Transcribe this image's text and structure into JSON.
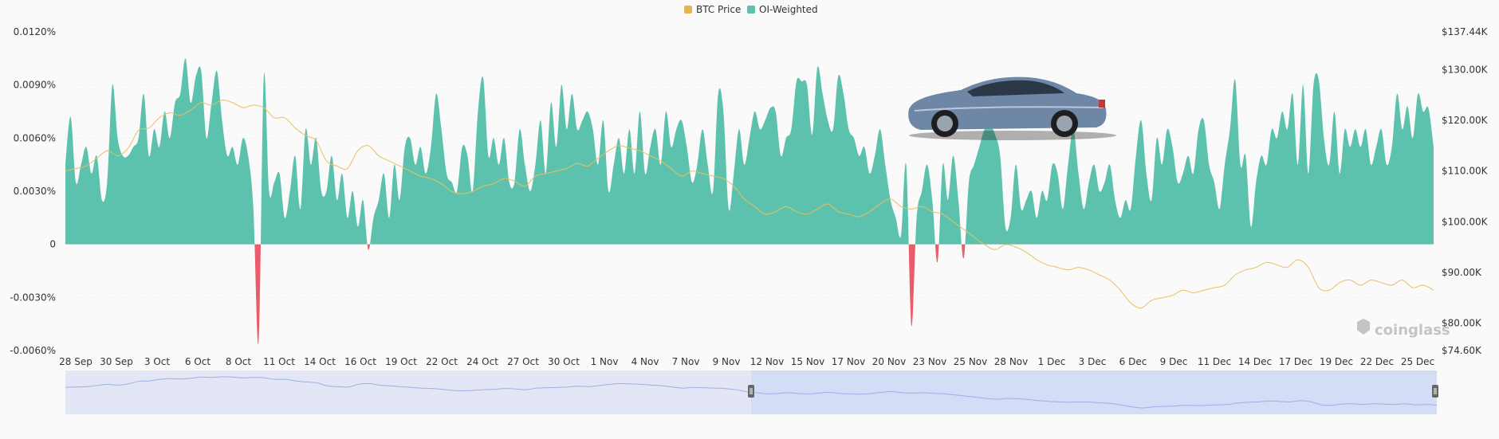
{
  "chart_data": {
    "type": "area",
    "legend_position": "top-center",
    "legend": [
      {
        "name": "BTC Price",
        "color": "#e2b64c"
      },
      {
        "name": "OI-Weighted",
        "color": "#5dc2ad"
      }
    ],
    "colors": {
      "positive": "#5dc2ad",
      "negative": "#ea5c6c",
      "price": "#e8c060",
      "navigator_fill": "#e3e7f5",
      "navigator_selected": "#d3ddf6",
      "navigator_line": "#9eb0e4"
    },
    "x_tick_labels": [
      "28 Sep",
      "30 Sep",
      "3 Oct",
      "6 Oct",
      "8 Oct",
      "11 Oct",
      "14 Oct",
      "16 Oct",
      "19 Oct",
      "22 Oct",
      "24 Oct",
      "27 Oct",
      "30 Oct",
      "1 Nov",
      "4 Nov",
      "7 Nov",
      "9 Nov",
      "12 Nov",
      "15 Nov",
      "17 Nov",
      "20 Nov",
      "23 Nov",
      "25 Nov",
      "28 Nov",
      "1 Dec",
      "3 Dec",
      "6 Dec",
      "9 Dec",
      "11 Dec",
      "14 Dec",
      "17 Dec",
      "19 Dec",
      "22 Dec",
      "25 Dec"
    ],
    "y_left_ticks": [
      "0.0120%",
      "0.0090%",
      "0.0060%",
      "0.0030%",
      "0",
      "-0.0030%",
      "-0.0060%"
    ],
    "y_right_ticks": [
      "$137.44K",
      "$130.00K",
      "$120.00K",
      "$110.00K",
      "$100.00K",
      "$90.00K",
      "$80.00K",
      "$74.60K"
    ],
    "y_left_range": [
      -0.006,
      0.012
    ],
    "y_right_range": [
      74600,
      137440
    ],
    "grid": "horizontal",
    "watermark": "coinglass",
    "funding_rate": [
      [
        0,
        0.0045
      ],
      [
        0.5,
        0.0072
      ],
      [
        1,
        0.0035
      ],
      [
        1.5,
        0.0045
      ],
      [
        2,
        0.0055
      ],
      [
        2.5,
        0.004
      ],
      [
        3,
        0.005
      ],
      [
        3.5,
        0.0025
      ],
      [
        4,
        0.0035
      ],
      [
        4.5,
        0.009
      ],
      [
        5,
        0.006
      ],
      [
        5.5,
        0.005
      ],
      [
        6,
        0.005
      ],
      [
        6.5,
        0.0055
      ],
      [
        7,
        0.006
      ],
      [
        7.5,
        0.0085
      ],
      [
        8,
        0.005
      ],
      [
        8.5,
        0.0065
      ],
      [
        9,
        0.0055
      ],
      [
        9.5,
        0.0075
      ],
      [
        10,
        0.006
      ],
      [
        10.5,
        0.008
      ],
      [
        11,
        0.0085
      ],
      [
        11.5,
        0.0105
      ],
      [
        12,
        0.008
      ],
      [
        12.5,
        0.0095
      ],
      [
        13,
        0.0098
      ],
      [
        13.5,
        0.006
      ],
      [
        14,
        0.008
      ],
      [
        14.5,
        0.0098
      ],
      [
        15,
        0.007
      ],
      [
        15.5,
        0.005
      ],
      [
        16,
        0.0055
      ],
      [
        16.5,
        0.0045
      ],
      [
        17,
        0.006
      ],
      [
        17.5,
        0.005
      ],
      [
        18,
        0.002
      ],
      [
        18.5,
        -0.0055
      ],
      [
        19,
        0.0095
      ],
      [
        19.5,
        0.003
      ],
      [
        20,
        0.0035
      ],
      [
        20.5,
        0.004
      ],
      [
        21,
        0.0015
      ],
      [
        21.5,
        0.003
      ],
      [
        22,
        0.005
      ],
      [
        22.5,
        0.002
      ],
      [
        23,
        0.0065
      ],
      [
        23.5,
        0.0045
      ],
      [
        24,
        0.006
      ],
      [
        24.5,
        0.003
      ],
      [
        25,
        0.003
      ],
      [
        25.5,
        0.005
      ],
      [
        26,
        0.0025
      ],
      [
        26.5,
        0.004
      ],
      [
        27,
        0.0015
      ],
      [
        27.5,
        0.003
      ],
      [
        28,
        0.001
      ],
      [
        28.5,
        0.0025
      ],
      [
        29,
        -0.0003
      ],
      [
        29.5,
        0.0015
      ],
      [
        30,
        0.0025
      ],
      [
        30.5,
        0.004
      ],
      [
        31,
        0.0015
      ],
      [
        31.5,
        0.0045
      ],
      [
        32,
        0.0025
      ],
      [
        32.5,
        0.0055
      ],
      [
        33,
        0.006
      ],
      [
        33.5,
        0.0045
      ],
      [
        34,
        0.0055
      ],
      [
        34.5,
        0.004
      ],
      [
        35,
        0.0055
      ],
      [
        35.5,
        0.0085
      ],
      [
        36,
        0.0065
      ],
      [
        36.5,
        0.004
      ],
      [
        37,
        0.0035
      ],
      [
        37.5,
        0.003
      ],
      [
        38,
        0.0055
      ],
      [
        38.5,
        0.005
      ],
      [
        39,
        0.003
      ],
      [
        39.5,
        0.0075
      ],
      [
        40,
        0.0094
      ],
      [
        40.5,
        0.005
      ],
      [
        41,
        0.006
      ],
      [
        41.5,
        0.0045
      ],
      [
        42,
        0.006
      ],
      [
        42.5,
        0.0035
      ],
      [
        43,
        0.0035
      ],
      [
        43.5,
        0.0065
      ],
      [
        44,
        0.0045
      ],
      [
        44.5,
        0.003
      ],
      [
        45,
        0.0045
      ],
      [
        45.5,
        0.007
      ],
      [
        46,
        0.004
      ],
      [
        46.5,
        0.008
      ],
      [
        47,
        0.0055
      ],
      [
        47.5,
        0.009
      ],
      [
        48,
        0.0065
      ],
      [
        48.5,
        0.0085
      ],
      [
        49,
        0.0065
      ],
      [
        49.5,
        0.007
      ],
      [
        50,
        0.0075
      ],
      [
        50.5,
        0.0065
      ],
      [
        51,
        0.0045
      ],
      [
        51.5,
        0.007
      ],
      [
        52,
        0.003
      ],
      [
        52.5,
        0.0045
      ],
      [
        53,
        0.006
      ],
      [
        53.5,
        0.004
      ],
      [
        54,
        0.0065
      ],
      [
        54.5,
        0.004
      ],
      [
        55,
        0.0075
      ],
      [
        55.5,
        0.004
      ],
      [
        56,
        0.0055
      ],
      [
        56.5,
        0.0065
      ],
      [
        57,
        0.0045
      ],
      [
        57.5,
        0.0075
      ],
      [
        58,
        0.0055
      ],
      [
        58.5,
        0.0065
      ],
      [
        59,
        0.007
      ],
      [
        59.5,
        0.0055
      ],
      [
        60,
        0.0035
      ],
      [
        60.5,
        0.0045
      ],
      [
        61,
        0.0065
      ],
      [
        61.5,
        0.0045
      ],
      [
        62,
        0.003
      ],
      [
        62.5,
        0.0085
      ],
      [
        63,
        0.0075
      ],
      [
        63.5,
        0.002
      ],
      [
        64,
        0.004
      ],
      [
        64.5,
        0.0065
      ],
      [
        65,
        0.0045
      ],
      [
        65.5,
        0.006
      ],
      [
        66,
        0.0075
      ],
      [
        66.5,
        0.0065
      ],
      [
        67,
        0.007
      ],
      [
        67.5,
        0.0077
      ],
      [
        68,
        0.0075
      ],
      [
        68.5,
        0.005
      ],
      [
        69,
        0.006
      ],
      [
        69.5,
        0.0065
      ],
      [
        70,
        0.0092
      ],
      [
        70.5,
        0.0092
      ],
      [
        71,
        0.009
      ],
      [
        71.5,
        0.0062
      ],
      [
        72,
        0.01
      ],
      [
        72.5,
        0.0085
      ],
      [
        73,
        0.007
      ],
      [
        73.5,
        0.0065
      ],
      [
        74,
        0.0095
      ],
      [
        74.5,
        0.0085
      ],
      [
        75,
        0.0065
      ],
      [
        75.5,
        0.006
      ],
      [
        76,
        0.005
      ],
      [
        76.5,
        0.0055
      ],
      [
        77,
        0.004
      ],
      [
        77.5,
        0.005
      ],
      [
        78,
        0.0065
      ],
      [
        78.5,
        0.0045
      ],
      [
        79,
        0.0025
      ],
      [
        79.5,
        0.0015
      ],
      [
        80,
        0.0005
      ],
      [
        80.5,
        0.0045
      ],
      [
        81,
        -0.0046
      ],
      [
        81.5,
        0.0015
      ],
      [
        82,
        0.003
      ],
      [
        82.5,
        0.0045
      ],
      [
        83,
        0.0025
      ],
      [
        83.5,
        -0.001
      ],
      [
        84,
        0.0045
      ],
      [
        84.5,
        0.0025
      ],
      [
        85,
        0.005
      ],
      [
        85.5,
        0.0025
      ],
      [
        86,
        -0.0008
      ],
      [
        86.5,
        0.0035
      ],
      [
        87,
        0.0045
      ],
      [
        87.5,
        0.0055
      ],
      [
        88,
        0.0065
      ],
      [
        88.5,
        0.0068
      ],
      [
        89,
        0.0062
      ],
      [
        89.5,
        0.005
      ],
      [
        90,
        0.001
      ],
      [
        90.5,
        0.0015
      ],
      [
        91,
        0.0045
      ],
      [
        91.5,
        0.002
      ],
      [
        92,
        0.0025
      ],
      [
        92.5,
        0.003
      ],
      [
        93,
        0.0015
      ],
      [
        93.5,
        0.003
      ],
      [
        94,
        0.0025
      ],
      [
        94.5,
        0.0045
      ],
      [
        95,
        0.004
      ],
      [
        95.5,
        0.002
      ],
      [
        96,
        0.0045
      ],
      [
        96.5,
        0.0065
      ],
      [
        97,
        0.004
      ],
      [
        97.5,
        0.002
      ],
      [
        98,
        0.0035
      ],
      [
        98.5,
        0.0045
      ],
      [
        99,
        0.003
      ],
      [
        99.5,
        0.0035
      ],
      [
        100,
        0.0045
      ],
      [
        100.5,
        0.0025
      ],
      [
        101,
        0.0015
      ],
      [
        101.5,
        0.0025
      ],
      [
        102,
        0.002
      ],
      [
        102.5,
        0.005
      ],
      [
        103,
        0.007
      ],
      [
        103.5,
        0.004
      ],
      [
        104,
        0.0025
      ],
      [
        104.5,
        0.006
      ],
      [
        105,
        0.0045
      ],
      [
        105.5,
        0.0065
      ],
      [
        106,
        0.0055
      ],
      [
        106.5,
        0.0035
      ],
      [
        107,
        0.004
      ],
      [
        107.5,
        0.005
      ],
      [
        108,
        0.004
      ],
      [
        108.5,
        0.0065
      ],
      [
        109,
        0.007
      ],
      [
        109.5,
        0.0045
      ],
      [
        110,
        0.0035
      ],
      [
        110.5,
        0.002
      ],
      [
        111,
        0.0045
      ],
      [
        111.5,
        0.0065
      ],
      [
        112,
        0.0093
      ],
      [
        112.5,
        0.0045
      ],
      [
        113,
        0.005
      ],
      [
        113.5,
        0.001
      ],
      [
        114,
        0.0035
      ],
      [
        114.5,
        0.005
      ],
      [
        115,
        0.0045
      ],
      [
        115.5,
        0.0065
      ],
      [
        116,
        0.006
      ],
      [
        116.5,
        0.0075
      ],
      [
        117,
        0.0065
      ],
      [
        117.5,
        0.0085
      ],
      [
        118,
        0.0045
      ],
      [
        118.5,
        0.009
      ],
      [
        119,
        0.004
      ],
      [
        119.5,
        0.009
      ],
      [
        120,
        0.0093
      ],
      [
        120.5,
        0.006
      ],
      [
        121,
        0.0045
      ],
      [
        121.5,
        0.0075
      ],
      [
        122,
        0.004
      ],
      [
        122.5,
        0.0065
      ],
      [
        123,
        0.0055
      ],
      [
        123.5,
        0.0065
      ],
      [
        124,
        0.0055
      ],
      [
        124.5,
        0.0065
      ],
      [
        125,
        0.0045
      ],
      [
        125.5,
        0.0055
      ],
      [
        126,
        0.0065
      ],
      [
        126.5,
        0.0045
      ],
      [
        127,
        0.0055
      ],
      [
        127.5,
        0.0085
      ],
      [
        128,
        0.0065
      ],
      [
        128.5,
        0.0078
      ],
      [
        129,
        0.006
      ],
      [
        129.5,
        0.0085
      ],
      [
        130,
        0.0075
      ],
      [
        130.5,
        0.0077
      ],
      [
        131,
        0.0055
      ]
    ],
    "btc_price": [
      [
        0,
        110000
      ],
      [
        1,
        110500
      ],
      [
        2,
        111000
      ],
      [
        3,
        112500
      ],
      [
        4,
        114000
      ],
      [
        5,
        113000
      ],
      [
        6,
        114500
      ],
      [
        7,
        118000
      ],
      [
        8,
        118500
      ],
      [
        9,
        120500
      ],
      [
        10,
        121500
      ],
      [
        11,
        121000
      ],
      [
        12,
        122000
      ],
      [
        13,
        123500
      ],
      [
        14,
        123000
      ],
      [
        15,
        124000
      ],
      [
        16,
        123500
      ],
      [
        17,
        122500
      ],
      [
        18,
        123000
      ],
      [
        19,
        122500
      ],
      [
        20,
        120500
      ],
      [
        21,
        120500
      ],
      [
        22,
        118500
      ],
      [
        23,
        117000
      ],
      [
        24,
        116000
      ],
      [
        25,
        112000
      ],
      [
        26,
        111000
      ],
      [
        27,
        110500
      ],
      [
        28,
        114000
      ],
      [
        29,
        115000
      ],
      [
        30,
        113000
      ],
      [
        31,
        112000
      ],
      [
        32,
        111000
      ],
      [
        33,
        110000
      ],
      [
        34,
        109000
      ],
      [
        35,
        108500
      ],
      [
        36,
        107500
      ],
      [
        37,
        106000
      ],
      [
        38,
        105500
      ],
      [
        39,
        106000
      ],
      [
        40,
        107000
      ],
      [
        41,
        107500
      ],
      [
        42,
        108500
      ],
      [
        43,
        108000
      ],
      [
        44,
        107000
      ],
      [
        45,
        109000
      ],
      [
        46,
        109500
      ],
      [
        47,
        110000
      ],
      [
        48,
        110500
      ],
      [
        49,
        111500
      ],
      [
        50,
        111000
      ],
      [
        51,
        112500
      ],
      [
        52,
        114000
      ],
      [
        53,
        115000
      ],
      [
        54,
        114500
      ],
      [
        55,
        114000
      ],
      [
        56,
        113000
      ],
      [
        57,
        112000
      ],
      [
        58,
        110500
      ],
      [
        59,
        109000
      ],
      [
        60,
        110000
      ],
      [
        61,
        109500
      ],
      [
        62,
        109000
      ],
      [
        63,
        108500
      ],
      [
        64,
        107000
      ],
      [
        65,
        104500
      ],
      [
        66,
        103000
      ],
      [
        67,
        101500
      ],
      [
        68,
        102000
      ],
      [
        69,
        103000
      ],
      [
        70,
        102000
      ],
      [
        71,
        101500
      ],
      [
        72,
        102500
      ],
      [
        73,
        103500
      ],
      [
        74,
        102000
      ],
      [
        75,
        101500
      ],
      [
        76,
        101000
      ],
      [
        77,
        102000
      ],
      [
        78,
        103500
      ],
      [
        79,
        104500
      ],
      [
        80,
        103000
      ],
      [
        81,
        102500
      ],
      [
        82,
        103000
      ],
      [
        83,
        102000
      ],
      [
        84,
        101500
      ],
      [
        85,
        100000
      ],
      [
        86,
        98500
      ],
      [
        87,
        97000
      ],
      [
        88,
        95500
      ],
      [
        89,
        94500
      ],
      [
        90,
        95500
      ],
      [
        91,
        95000
      ],
      [
        92,
        94000
      ],
      [
        93,
        92500
      ],
      [
        94,
        91500
      ],
      [
        95,
        91000
      ],
      [
        96,
        90500
      ],
      [
        97,
        91000
      ],
      [
        98,
        90500
      ],
      [
        99,
        89500
      ],
      [
        100,
        88500
      ],
      [
        101,
        86500
      ],
      [
        102,
        84000
      ],
      [
        103,
        83000
      ],
      [
        104,
        84500
      ],
      [
        105,
        85000
      ],
      [
        106,
        85500
      ],
      [
        107,
        86500
      ],
      [
        108,
        86000
      ],
      [
        109,
        86500
      ],
      [
        110,
        87000
      ],
      [
        111,
        87500
      ],
      [
        112,
        89500
      ],
      [
        113,
        90500
      ],
      [
        114,
        91000
      ],
      [
        115,
        92000
      ],
      [
        116,
        91500
      ],
      [
        117,
        91000
      ],
      [
        118,
        92500
      ],
      [
        119,
        91000
      ],
      [
        120,
        87000
      ],
      [
        121,
        86500
      ],
      [
        122,
        88000
      ],
      [
        123,
        88500
      ],
      [
        124,
        87500
      ],
      [
        125,
        88500
      ],
      [
        126,
        88000
      ],
      [
        127,
        87500
      ],
      [
        128,
        88500
      ],
      [
        129,
        87000
      ],
      [
        130,
        87500
      ],
      [
        131,
        86500
      ]
    ],
    "navigator": {
      "selected_range_start_fraction": 0.5,
      "selected_range_end_fraction": 1.0
    }
  }
}
